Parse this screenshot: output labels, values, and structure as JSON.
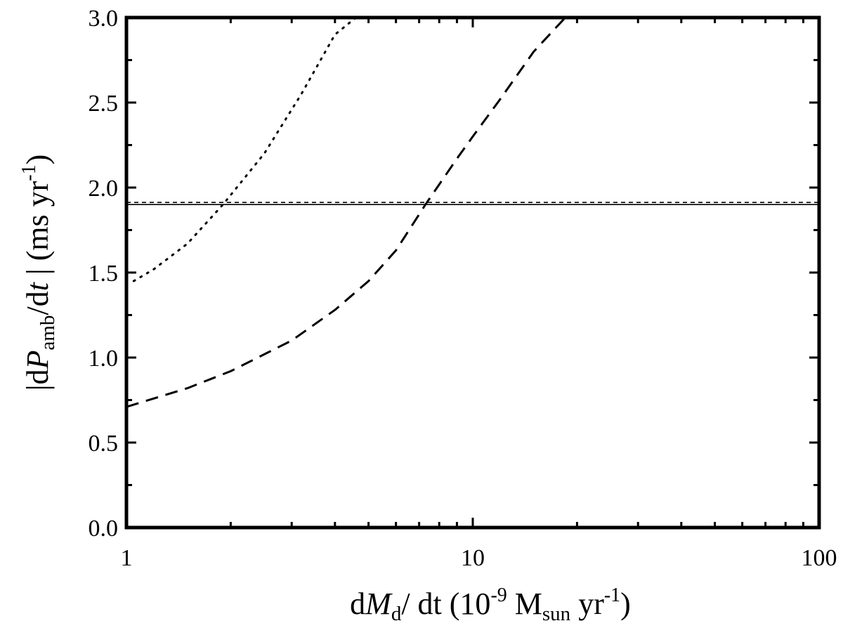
{
  "chart_data": {
    "type": "line",
    "xscale": "log",
    "xlim": [
      1,
      100
    ],
    "ylim": [
      0.0,
      3.0
    ],
    "grid": false,
    "legend": "none",
    "x_tick_labels": [
      "1",
      "10",
      "100"
    ],
    "y_tick_labels": [
      "0.0",
      "0.5",
      "1.0",
      "1.5",
      "2.0",
      "2.5",
      "3.0"
    ],
    "xlabel": {
      "pre": "d",
      "var": "M",
      "sub": "d",
      "slash": "/",
      "mid": " dt (10",
      "sup": "-9",
      "unit": " M",
      "unit_sub": "sun",
      "tail": " yr",
      "tail_sup": "-1",
      "close": ")"
    },
    "ylabel": {
      "pre": "|d",
      "var": "P",
      "sub": "amb",
      "slash": "/d",
      "var2": "t",
      "mid": " | (ms yr",
      "sup": "-1",
      "close": ")"
    },
    "series": [
      {
        "style": "dotted",
        "x": [
          1.05,
          1.2,
          1.5,
          1.9,
          2.5,
          3.2,
          4.0,
          4.6
        ],
        "y": [
          1.45,
          1.52,
          1.67,
          1.9,
          2.2,
          2.55,
          2.9,
          3.0
        ]
      },
      {
        "style": "dashed",
        "x": [
          1.0,
          1.5,
          2.0,
          3.0,
          4.0,
          5.0,
          6.0,
          7.3,
          9.0,
          10.0,
          12.0,
          15.0,
          18.5
        ],
        "y": [
          0.71,
          0.82,
          0.92,
          1.1,
          1.28,
          1.45,
          1.63,
          1.9,
          2.17,
          2.3,
          2.52,
          2.8,
          3.0
        ]
      },
      {
        "style": "solid",
        "x": [
          1,
          100
        ],
        "y": [
          1.9,
          1.9
        ]
      },
      {
        "style": "dashed-short",
        "x": [
          1,
          100
        ],
        "y": [
          1.9,
          1.9
        ]
      }
    ]
  }
}
